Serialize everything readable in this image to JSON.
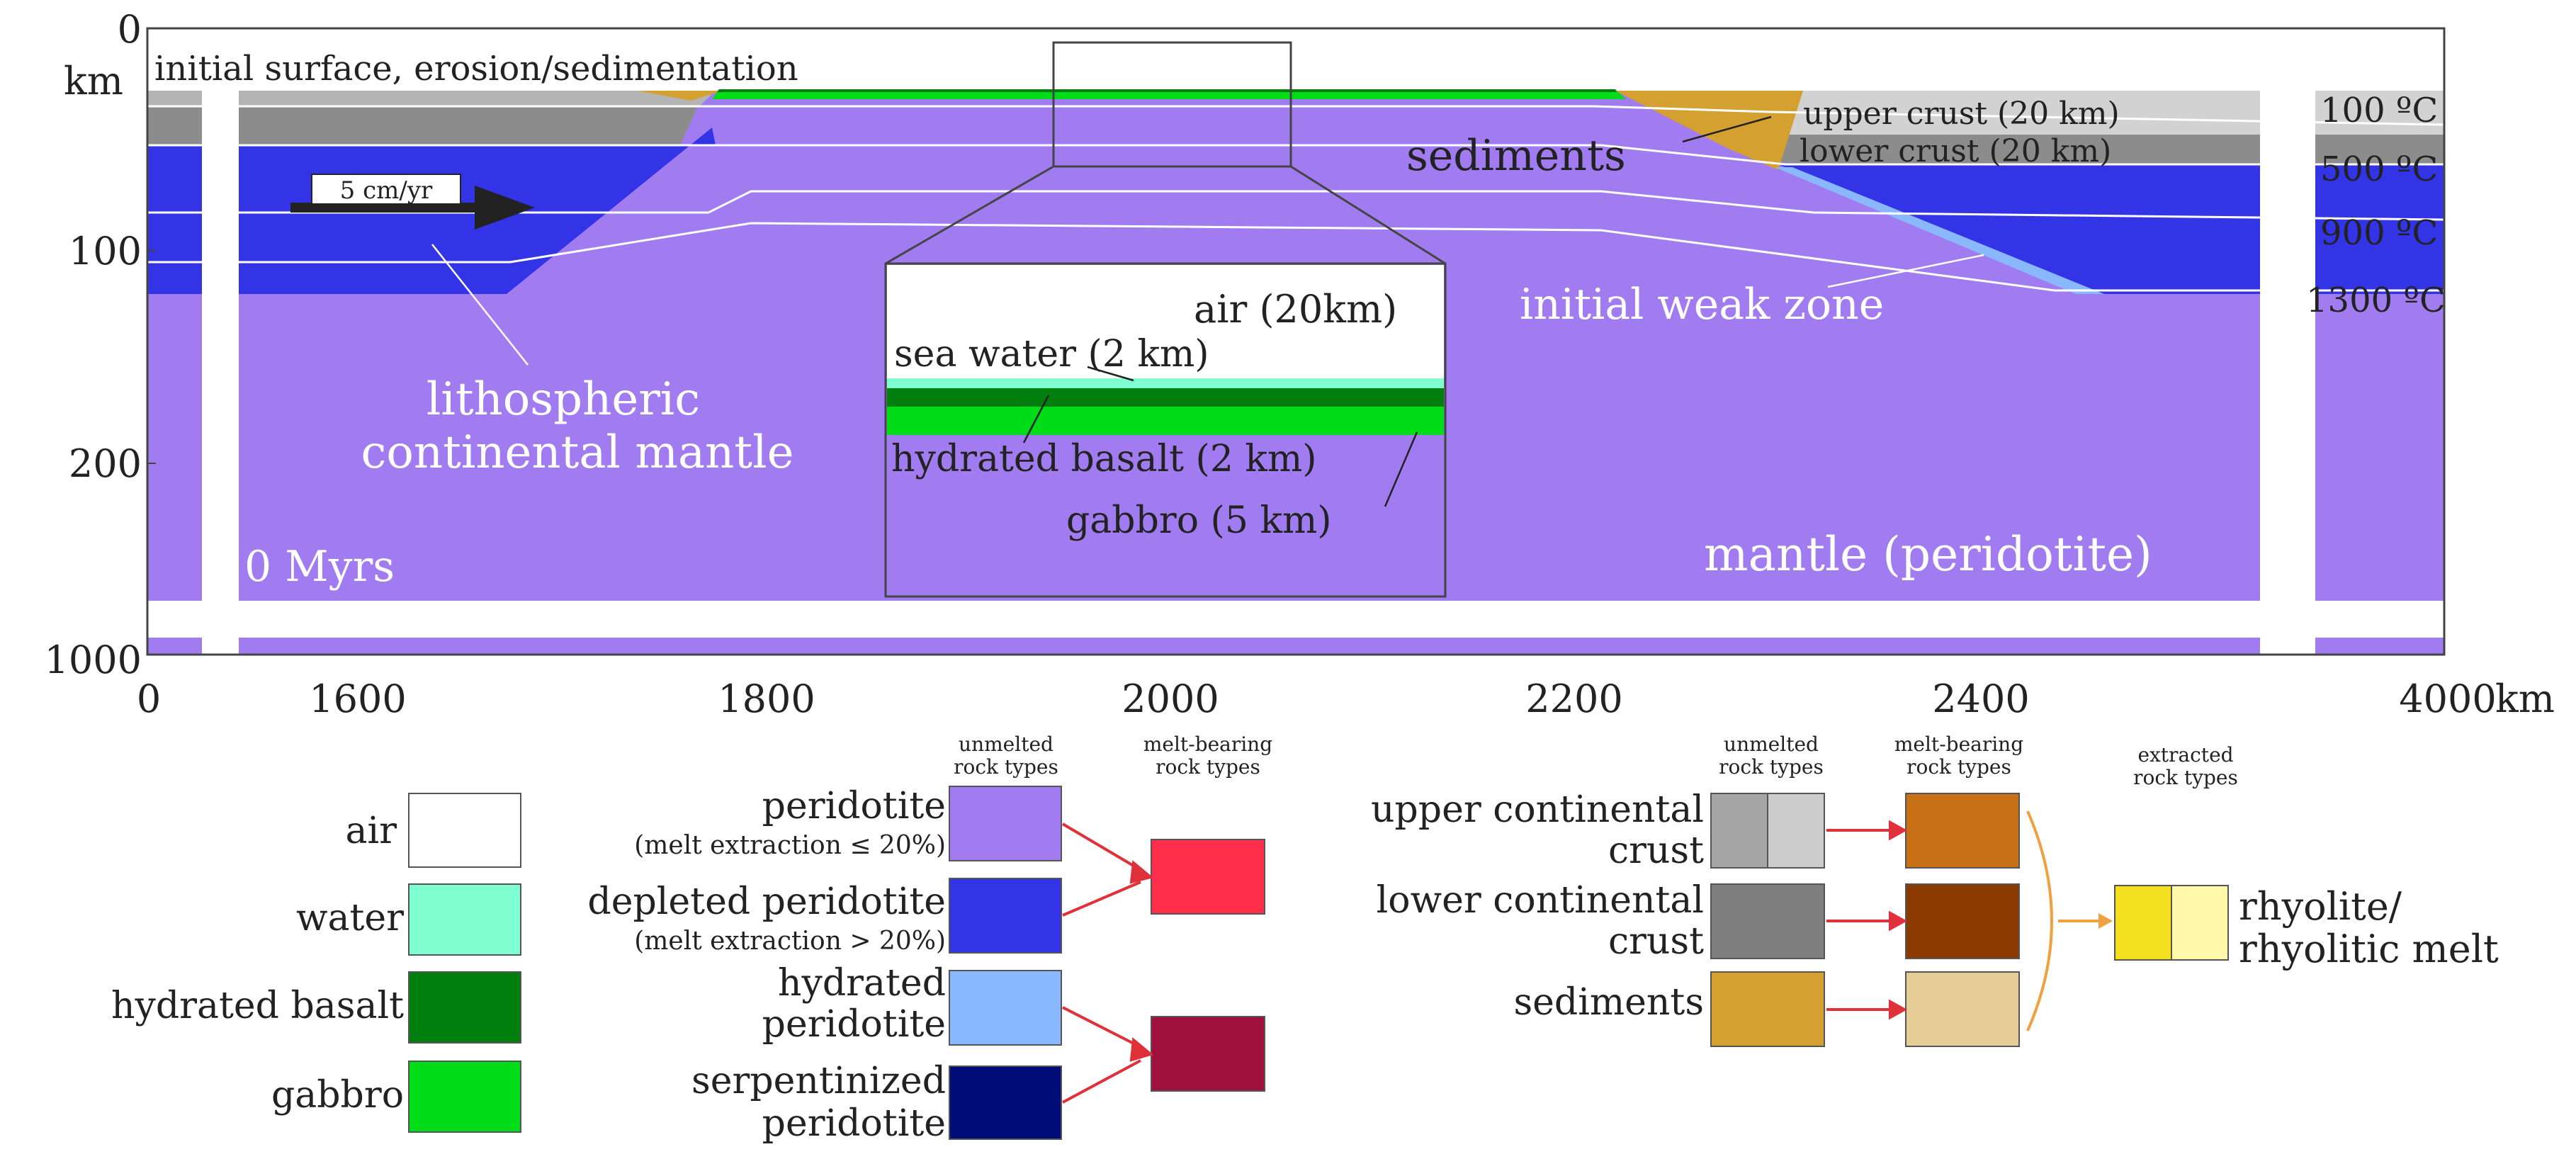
{
  "model": {
    "y_axis": {
      "unit": "km",
      "ticks": [
        "0",
        "100",
        "200",
        "1000"
      ]
    },
    "x_axis": {
      "unit": "km",
      "ticks": [
        "0",
        "1600",
        "1800",
        "2000",
        "2200",
        "2400",
        "4000"
      ]
    },
    "labels": {
      "initial_surface": "initial surface, erosion/sedimentation",
      "velocity": "5 cm/yr",
      "sediments": "sediments",
      "upper_crust": "upper crust (20 km)",
      "lower_crust": "lower crust (20 km)",
      "initial_weak_zone": "initial weak zone",
      "litho_line1": "lithospheric",
      "litho_line2": "continental mantle",
      "time": "0 Myrs",
      "mantle": "mantle (peridotite)"
    },
    "isotherms": [
      "100 ºC",
      "500 ºC",
      "900 ºC",
      "1300 ºC"
    ],
    "inset": {
      "air": "air (20km)",
      "sea_water": "sea water (2 km)",
      "hydrated_basalt": "hydrated basalt (2 km)",
      "gabbro": "gabbro (5 km)"
    }
  },
  "legend": {
    "headers": {
      "unmelted": [
        "unmelted",
        "rock types"
      ],
      "melt_bearing": [
        "melt-bearing",
        "rock types"
      ],
      "extracted": [
        "extracted",
        "rock types"
      ]
    },
    "simple": [
      {
        "label": "air",
        "color": "#ffffff"
      },
      {
        "label": "water",
        "color": "#7fffd0"
      },
      {
        "label": "hydrated basalt",
        "color": "#007f0e"
      },
      {
        "label": "gabbro",
        "color": "#00dd18"
      }
    ],
    "mantle": [
      {
        "label": [
          "peridotite",
          "(melt extraction ≤ 20%)"
        ],
        "color": "#a07cf0"
      },
      {
        "label": [
          "depleted peridotite",
          "(melt extraction > 20%)"
        ],
        "color": "#3234e6"
      },
      {
        "label": [
          "hydrated",
          "peridotite"
        ],
        "color": "#8ab8ff"
      },
      {
        "label": [
          "serpentinized",
          "peridotite"
        ],
        "color": "#000c78"
      }
    ],
    "mantle_melt": [
      "#ff2f4c",
      "#a0103e"
    ],
    "crust": [
      {
        "label": [
          "upper continental",
          "crust"
        ],
        "colors": [
          "#a6a6a6",
          "#cccccc"
        ],
        "melt": "#c87016"
      },
      {
        "label": [
          "lower continental",
          "crust"
        ],
        "colors": [
          "#7f7f7f"
        ],
        "melt": "#8c3b00"
      },
      {
        "label": [
          "sediments"
        ],
        "colors": [
          "#d4a030"
        ],
        "melt": "#e6cc96"
      }
    ],
    "extracted": {
      "label": [
        "rhyolite/",
        "rhyolitic melt"
      ],
      "colors": [
        "#f2df1e",
        "#fff8aa"
      ]
    }
  }
}
